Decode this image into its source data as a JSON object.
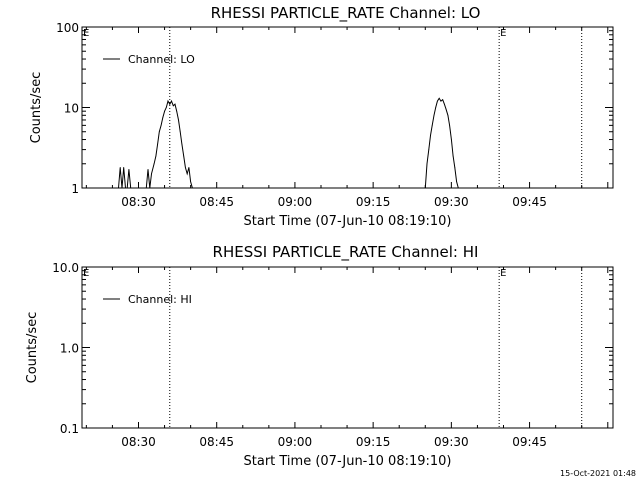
{
  "footer": {
    "timestamp": "15-Oct-2021 01:48"
  },
  "chart_data": [
    {
      "type": "line",
      "title": "RHESSI PARTICLE_RATE Channel: LO",
      "xlabel": "Start Time (07-Jun-10 08:19:10)",
      "ylabel": "Counts/sec",
      "yscale": "log",
      "ylim": [
        1,
        100
      ],
      "xlim": [
        "08:19:10",
        "10:01:00"
      ],
      "x_ticks": [
        "08:30",
        "08:45",
        "09:00",
        "09:15",
        "09:30",
        "09:45"
      ],
      "y_ticks": [
        "1",
        "10",
        "100"
      ],
      "legend": {
        "position": "top-left",
        "entries": [
          "Channel: LO"
        ]
      },
      "markers": [
        {
          "label": "E",
          "x": "08:19:10"
        },
        {
          "label": "E",
          "x": "09:39:10"
        }
      ],
      "vlines": [
        "08:36:00",
        "09:39:10",
        "09:55:00"
      ],
      "series": [
        {
          "name": "Channel: LO",
          "x": [
            "08:26:10",
            "08:26:30",
            "08:26:50",
            "08:27:10",
            "08:27:30",
            "08:27:50",
            "08:28:10",
            "08:28:30",
            "08:31:30",
            "08:31:50",
            "08:32:10",
            "08:32:30",
            "08:33:00",
            "08:33:20",
            "08:33:40",
            "08:34:00",
            "08:34:20",
            "08:34:40",
            "08:35:00",
            "08:35:20",
            "08:35:40",
            "08:36:00",
            "08:36:20",
            "08:36:40",
            "08:37:00",
            "08:37:20",
            "08:37:40",
            "08:38:00",
            "08:38:20",
            "08:38:40",
            "08:39:00",
            "08:39:20",
            "08:39:40",
            "08:40:00",
            "08:40:20",
            "09:25:00",
            "09:25:20",
            "09:25:40",
            "09:26:00",
            "09:26:20",
            "09:26:40",
            "09:27:00",
            "09:27:20",
            "09:27:40",
            "09:28:00",
            "09:28:20",
            "09:28:40",
            "09:29:00",
            "09:29:20",
            "09:29:40",
            "09:30:00",
            "09:30:20",
            "09:30:40",
            "09:31:00",
            "09:31:20"
          ],
          "y": [
            1,
            1.8,
            1,
            1.8,
            1,
            1,
            1.7,
            1,
            1,
            1.7,
            1,
            1.5,
            2,
            2.5,
            3.5,
            5,
            6,
            7.5,
            9,
            10,
            12,
            11,
            12,
            10.5,
            11,
            9,
            7,
            5,
            3.5,
            2.5,
            1.8,
            1.5,
            1.8,
            1.2,
            1,
            1,
            2,
            3,
            4.5,
            6,
            8,
            10,
            12,
            13,
            12,
            12.5,
            11,
            9.5,
            8,
            6,
            4,
            2.5,
            1.8,
            1.2,
            1
          ]
        }
      ]
    },
    {
      "type": "line",
      "title": "RHESSI PARTICLE_RATE Channel: HI",
      "xlabel": "Start Time (07-Jun-10 08:19:10)",
      "ylabel": "Counts/sec",
      "yscale": "log",
      "ylim": [
        0.1,
        10
      ],
      "xlim": [
        "08:19:10",
        "10:01:00"
      ],
      "x_ticks": [
        "08:30",
        "08:45",
        "09:00",
        "09:15",
        "09:30",
        "09:45"
      ],
      "y_ticks": [
        "0.1",
        "1.0",
        "10.0"
      ],
      "legend": {
        "position": "top-left",
        "entries": [
          "Channel: HI"
        ]
      },
      "markers": [
        {
          "label": "E",
          "x": "08:19:10"
        },
        {
          "label": "E",
          "x": "09:39:10"
        }
      ],
      "vlines": [
        "08:36:00",
        "09:39:10",
        "09:55:00"
      ],
      "series": [
        {
          "name": "Channel: HI",
          "x": [],
          "y": []
        }
      ]
    }
  ]
}
